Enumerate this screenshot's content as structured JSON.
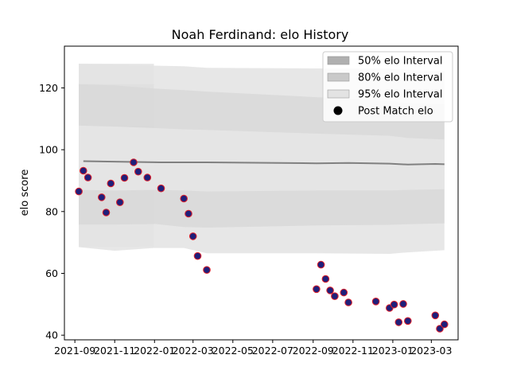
{
  "chart_data": {
    "type": "scatter",
    "title": "Noah Ferdinand: elo History",
    "xlabel": "",
    "ylabel": "elo score",
    "xlim": [
      "2021-08-16",
      "2023-04-11"
    ],
    "ylim": [
      38.5,
      133.5
    ],
    "y_ticks": [
      40,
      60,
      80,
      100,
      120
    ],
    "x_ticks": [
      {
        "date": "2021-09-01",
        "label": "2021-09"
      },
      {
        "date": "2021-11-01",
        "label": "2021-11"
      },
      {
        "date": "2022-01-01",
        "label": "2022-01"
      },
      {
        "date": "2022-03-01",
        "label": "2022-03"
      },
      {
        "date": "2022-05-01",
        "label": "2022-05"
      },
      {
        "date": "2022-07-01",
        "label": "2022-07"
      },
      {
        "date": "2022-09-01",
        "label": "2022-09"
      },
      {
        "date": "2022-11-01",
        "label": "2022-11"
      },
      {
        "date": "2023-01-01",
        "label": "2023-01"
      },
      {
        "date": "2023-03-01",
        "label": "2023-03"
      }
    ],
    "grid": false,
    "legend_position": "top-right",
    "legend": [
      {
        "label": "50% elo Interval",
        "kind": "patch",
        "color": "#b0b0b0"
      },
      {
        "label": "80% elo Interval",
        "kind": "patch",
        "color": "#c9c9c9"
      },
      {
        "label": "95% elo Interval",
        "kind": "patch",
        "color": "#e3e3e3"
      },
      {
        "label": "Post Match elo",
        "kind": "marker",
        "color": "#000000"
      }
    ],
    "colors": {
      "point_fill": "#1f1f7a",
      "point_edge": "#e0202a",
      "mean_line": "#808080",
      "band_50": "#b0b0b0",
      "band_80": "#c9c9c9",
      "band_95": "#e3e3e3"
    },
    "points": [
      {
        "x": "2021-09-07",
        "y": 86.5
      },
      {
        "x": "2021-09-14",
        "y": 93.2
      },
      {
        "x": "2021-09-21",
        "y": 91.0
      },
      {
        "x": "2021-10-12",
        "y": 84.6
      },
      {
        "x": "2021-10-19",
        "y": 79.7
      },
      {
        "x": "2021-10-26",
        "y": 89.1
      },
      {
        "x": "2021-11-09",
        "y": 83.0
      },
      {
        "x": "2021-11-16",
        "y": 90.9
      },
      {
        "x": "2021-11-30",
        "y": 95.9
      },
      {
        "x": "2021-12-07",
        "y": 92.9
      },
      {
        "x": "2021-12-21",
        "y": 91.0
      },
      {
        "x": "2022-01-11",
        "y": 87.5
      },
      {
        "x": "2022-02-15",
        "y": 84.2
      },
      {
        "x": "2022-02-22",
        "y": 79.3
      },
      {
        "x": "2022-03-01",
        "y": 72.0
      },
      {
        "x": "2022-03-08",
        "y": 65.6
      },
      {
        "x": "2022-03-22",
        "y": 61.1
      },
      {
        "x": "2022-09-06",
        "y": 54.9
      },
      {
        "x": "2022-09-13",
        "y": 62.8
      },
      {
        "x": "2022-09-20",
        "y": 58.2
      },
      {
        "x": "2022-09-27",
        "y": 54.5
      },
      {
        "x": "2022-10-04",
        "y": 52.6
      },
      {
        "x": "2022-10-18",
        "y": 53.8
      },
      {
        "x": "2022-10-25",
        "y": 50.6
      },
      {
        "x": "2022-12-06",
        "y": 50.9
      },
      {
        "x": "2022-12-27",
        "y": 48.8
      },
      {
        "x": "2023-01-03",
        "y": 49.9
      },
      {
        "x": "2023-01-10",
        "y": 44.2
      },
      {
        "x": "2023-01-17",
        "y": 50.1
      },
      {
        "x": "2023-01-24",
        "y": 44.6
      },
      {
        "x": "2023-03-07",
        "y": 46.4
      },
      {
        "x": "2023-03-14",
        "y": 42.1
      },
      {
        "x": "2023-03-21",
        "y": 43.5
      }
    ],
    "mean_line": [
      {
        "x": "2021-09-14",
        "y": 96.3
      },
      {
        "x": "2022-01-11",
        "y": 95.9
      },
      {
        "x": "2022-03-22",
        "y": 95.9
      },
      {
        "x": "2022-09-06",
        "y": 95.6
      },
      {
        "x": "2022-10-25",
        "y": 95.7
      },
      {
        "x": "2022-12-27",
        "y": 95.5
      },
      {
        "x": "2023-01-24",
        "y": 95.2
      },
      {
        "x": "2023-03-07",
        "y": 95.4
      },
      {
        "x": "2023-03-21",
        "y": 95.3
      }
    ],
    "bands": [
      {
        "level": "95%",
        "color": "#e3e3e3",
        "dates": [
          "2021-09-07",
          "2021-12-31"
        ],
        "lower": [
          68.5,
          68.5
        ],
        "upper": [
          127.8,
          127.8
        ]
      },
      {
        "level": "80%",
        "color": "#c9c9c9",
        "dates": [
          "2021-09-07",
          "2021-12-31"
        ],
        "lower": [
          75.8,
          75.8
        ],
        "upper": [
          121.2,
          121.2
        ]
      },
      {
        "level": "50%",
        "color": "#b0b0b0",
        "dates": [
          "2021-09-07",
          "2021-12-31"
        ],
        "lower": [
          87.0,
          87.0
        ],
        "upper": [
          107.8,
          107.8
        ]
      },
      {
        "level": "95%",
        "color": "#e3e3e3",
        "dates": [
          "2021-09-07",
          "2021-11-01",
          "2021-12-31",
          "2022-02-15",
          "2022-03-22",
          "2022-09-06",
          "2022-12-27",
          "2023-01-24",
          "2023-03-21"
        ],
        "lower": [
          68.5,
          67.3,
          68.2,
          68.2,
          66.5,
          66.5,
          66.3,
          66.8,
          67.5
        ],
        "upper": [
          127.8,
          127.6,
          127.2,
          127.0,
          126.5,
          126.3,
          126.2,
          125.8,
          125.5
        ]
      },
      {
        "level": "80%",
        "color": "#d8d8d8",
        "dates": [
          "2021-09-07",
          "2021-11-01",
          "2021-12-31",
          "2022-02-15",
          "2022-03-22",
          "2022-09-06",
          "2022-12-27",
          "2023-01-24",
          "2023-03-21"
        ],
        "lower": [
          75.8,
          75.8,
          76.0,
          75.0,
          74.8,
          75.5,
          75.7,
          75.9,
          76.2
        ],
        "upper": [
          121.2,
          120.8,
          119.8,
          119.3,
          118.8,
          117.0,
          115.8,
          115.0,
          114.8
        ]
      },
      {
        "level": "50%",
        "color": "#e6e6e6",
        "dates": [
          "2021-09-07",
          "2021-11-01",
          "2021-12-31",
          "2022-02-15",
          "2022-03-22",
          "2022-09-06",
          "2022-12-27",
          "2023-01-24",
          "2023-03-21"
        ],
        "lower": [
          87.0,
          86.8,
          87.0,
          86.8,
          86.5,
          86.8,
          86.8,
          87.0,
          87.2
        ],
        "upper": [
          107.8,
          107.5,
          107.0,
          106.6,
          106.4,
          105.2,
          104.5,
          103.8,
          103.3
        ]
      }
    ]
  }
}
